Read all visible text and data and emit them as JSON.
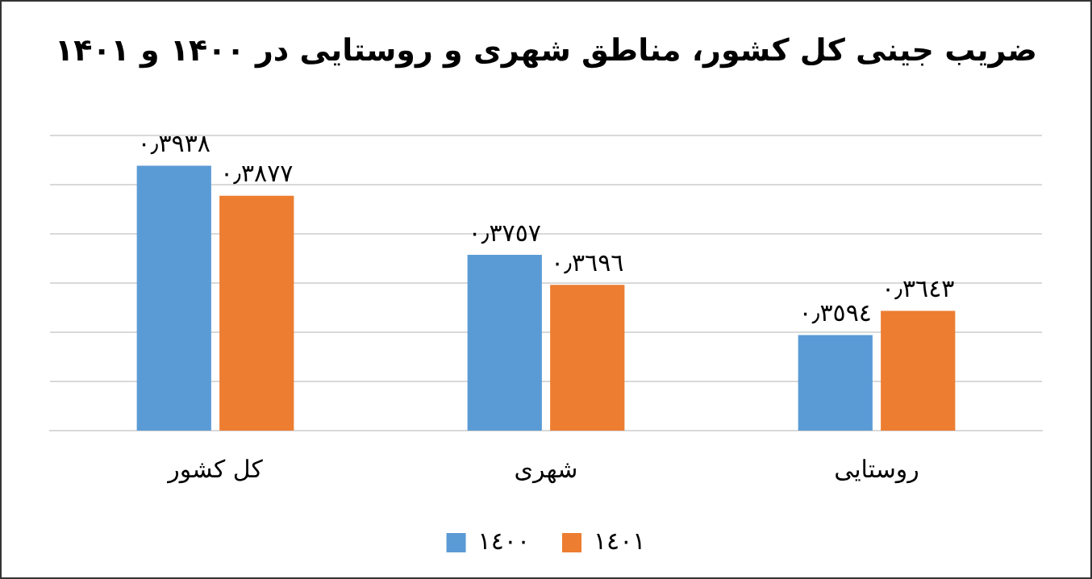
{
  "chart_data": {
    "type": "bar",
    "title": "ضریب جینی کل کشور، مناطق شهری و روستایی در ۱۴۰۰ و ۱۴۰۱",
    "categories": [
      "کل کشور",
      "شهری",
      "روستایی"
    ],
    "series": [
      {
        "name": "١٤٠٠",
        "color": "#5b9bd5",
        "values": [
          0.3938,
          0.3757,
          0.3594
        ],
        "value_labels": [
          "٠٫٣٩٣٨",
          "٠٫٣٧٥٧",
          "٠٫٣٥٩٤"
        ]
      },
      {
        "name": "١٤٠١",
        "color": "#ed7d31",
        "values": [
          0.3877,
          0.3696,
          0.3643
        ],
        "value_labels": [
          "٠٫٣٨٧٧",
          "٠٫٣٦٩٦",
          "٠٫٣٦٤٣"
        ]
      }
    ],
    "ylim": [
      0.34,
      0.4
    ],
    "yticks": [
      {
        "value": 0.34,
        "label": null
      },
      {
        "value": 0.35,
        "label": null
      },
      {
        "value": 0.36,
        "label": null
      },
      {
        "value": 0.37,
        "label": null
      },
      {
        "value": 0.38,
        "label": null
      },
      {
        "value": 0.39,
        "label": null
      },
      {
        "value": 0.4,
        "label": null
      }
    ],
    "grid": "y",
    "legend": "bottom",
    "tick_labels": "x"
  }
}
